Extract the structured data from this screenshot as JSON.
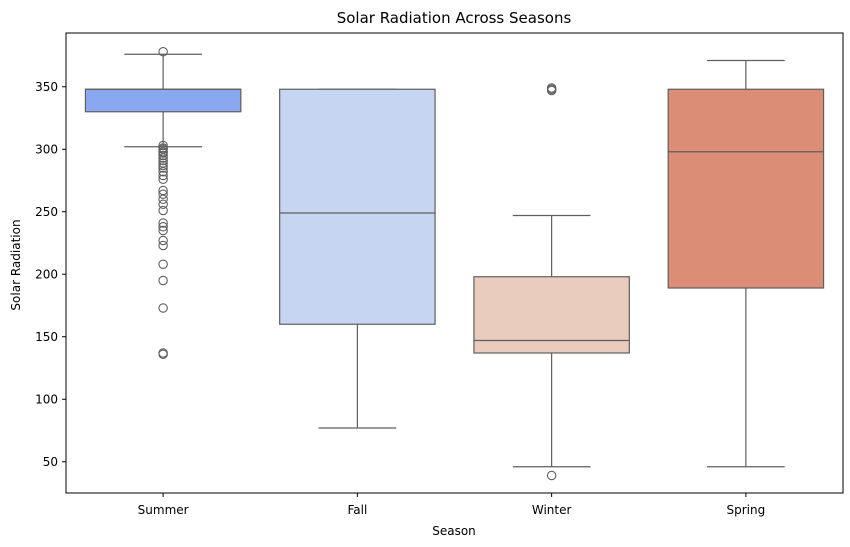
{
  "chart_data": {
    "type": "box",
    "title": "Solar Radiation Across Seasons",
    "xlabel": "Season",
    "ylabel": "Solar Radiation",
    "ylim": [
      25,
      393
    ],
    "yticks": [
      50,
      100,
      150,
      200,
      250,
      300,
      350
    ],
    "grid": false,
    "legend": "none",
    "categories": [
      "Summer",
      "Fall",
      "Winter",
      "Spring"
    ],
    "boxes": [
      {
        "category": "Summer",
        "color": "#8aa8f0",
        "whisker_low": 302,
        "q1": 330,
        "median": 348,
        "q3": 348,
        "whisker_high": 376,
        "outliers": [
          378,
          303,
          301,
          300,
          298,
          297,
          295,
          293,
          291,
          289,
          287,
          285,
          282,
          279,
          276,
          267,
          264,
          260,
          256,
          251,
          241,
          238,
          235,
          227,
          223,
          208,
          195,
          173,
          137,
          136
        ]
      },
      {
        "category": "Fall",
        "color": "#c6d5f1",
        "whisker_low": 77,
        "q1": 160,
        "median": 249,
        "q3": 348,
        "whisker_high": 348,
        "outliers": []
      },
      {
        "category": "Winter",
        "color": "#eaccbe",
        "whisker_low": 46,
        "q1": 137,
        "median": 147,
        "q3": 198,
        "whisker_high": 247,
        "outliers": [
          349,
          348,
          347,
          39
        ]
      },
      {
        "category": "Spring",
        "color": "#dc8d76",
        "whisker_low": 46,
        "q1": 189,
        "median": 298,
        "q3": 348,
        "whisker_high": 371,
        "outliers": []
      }
    ]
  }
}
